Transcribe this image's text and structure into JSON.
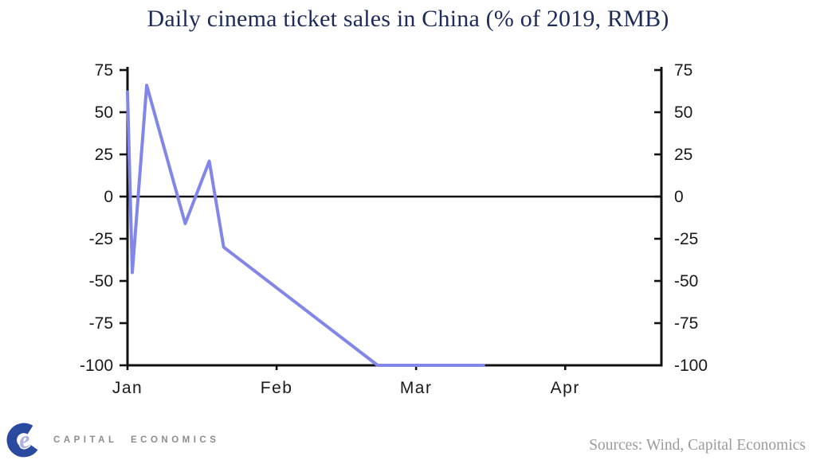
{
  "chart_data": {
    "type": "line",
    "title": "Daily cinema ticket sales in China (% of 2019, RMB)",
    "x_axis": {
      "tick_labels": [
        "Jan",
        "Feb",
        "Mar",
        "Apr"
      ],
      "tick_days": [
        0,
        31,
        60,
        91
      ],
      "domain_days": [
        0,
        111
      ]
    },
    "y_axis": {
      "tick_values": [
        75,
        50,
        25,
        0,
        -25,
        -50,
        -75,
        -100
      ],
      "range": [
        -100,
        75
      ],
      "mirrored_right_axis": true,
      "zero_line": true,
      "grid": false
    },
    "legend": "none",
    "axis_color": "#111111",
    "series": [
      {
        "color": "#8186e8",
        "points": [
          {
            "x_label": "Jan 1",
            "day": 0,
            "value": 62
          },
          {
            "x_label": "Jan 2",
            "day": 1,
            "value": -45
          },
          {
            "x_label": "Jan 5",
            "day": 4,
            "value": 66
          },
          {
            "x_label": "Jan 13",
            "day": 12,
            "value": -16
          },
          {
            "x_label": "Jan 18",
            "day": 17,
            "value": 21
          },
          {
            "x_label": "Jan 21",
            "day": 20,
            "value": -30
          },
          {
            "x_label": "Feb 22",
            "day": 52,
            "value": -100
          },
          {
            "x_label": "Mar 15",
            "day": 74,
            "value": -100
          }
        ]
      }
    ]
  },
  "footer": {
    "logo_text": "CAPITAL ECONOMICS",
    "sources": "Sources: Wind, Capital Economics"
  },
  "colors": {
    "title": "#1e2a5a",
    "line": "#8186e8",
    "axis": "#111111",
    "tick_labels": "#1a1a1a",
    "logo_c": "#2a4aa0",
    "logo_e": "#a9b2e2",
    "logo_text": "#8d8d8d",
    "sources_text": "#9b9b9b"
  }
}
